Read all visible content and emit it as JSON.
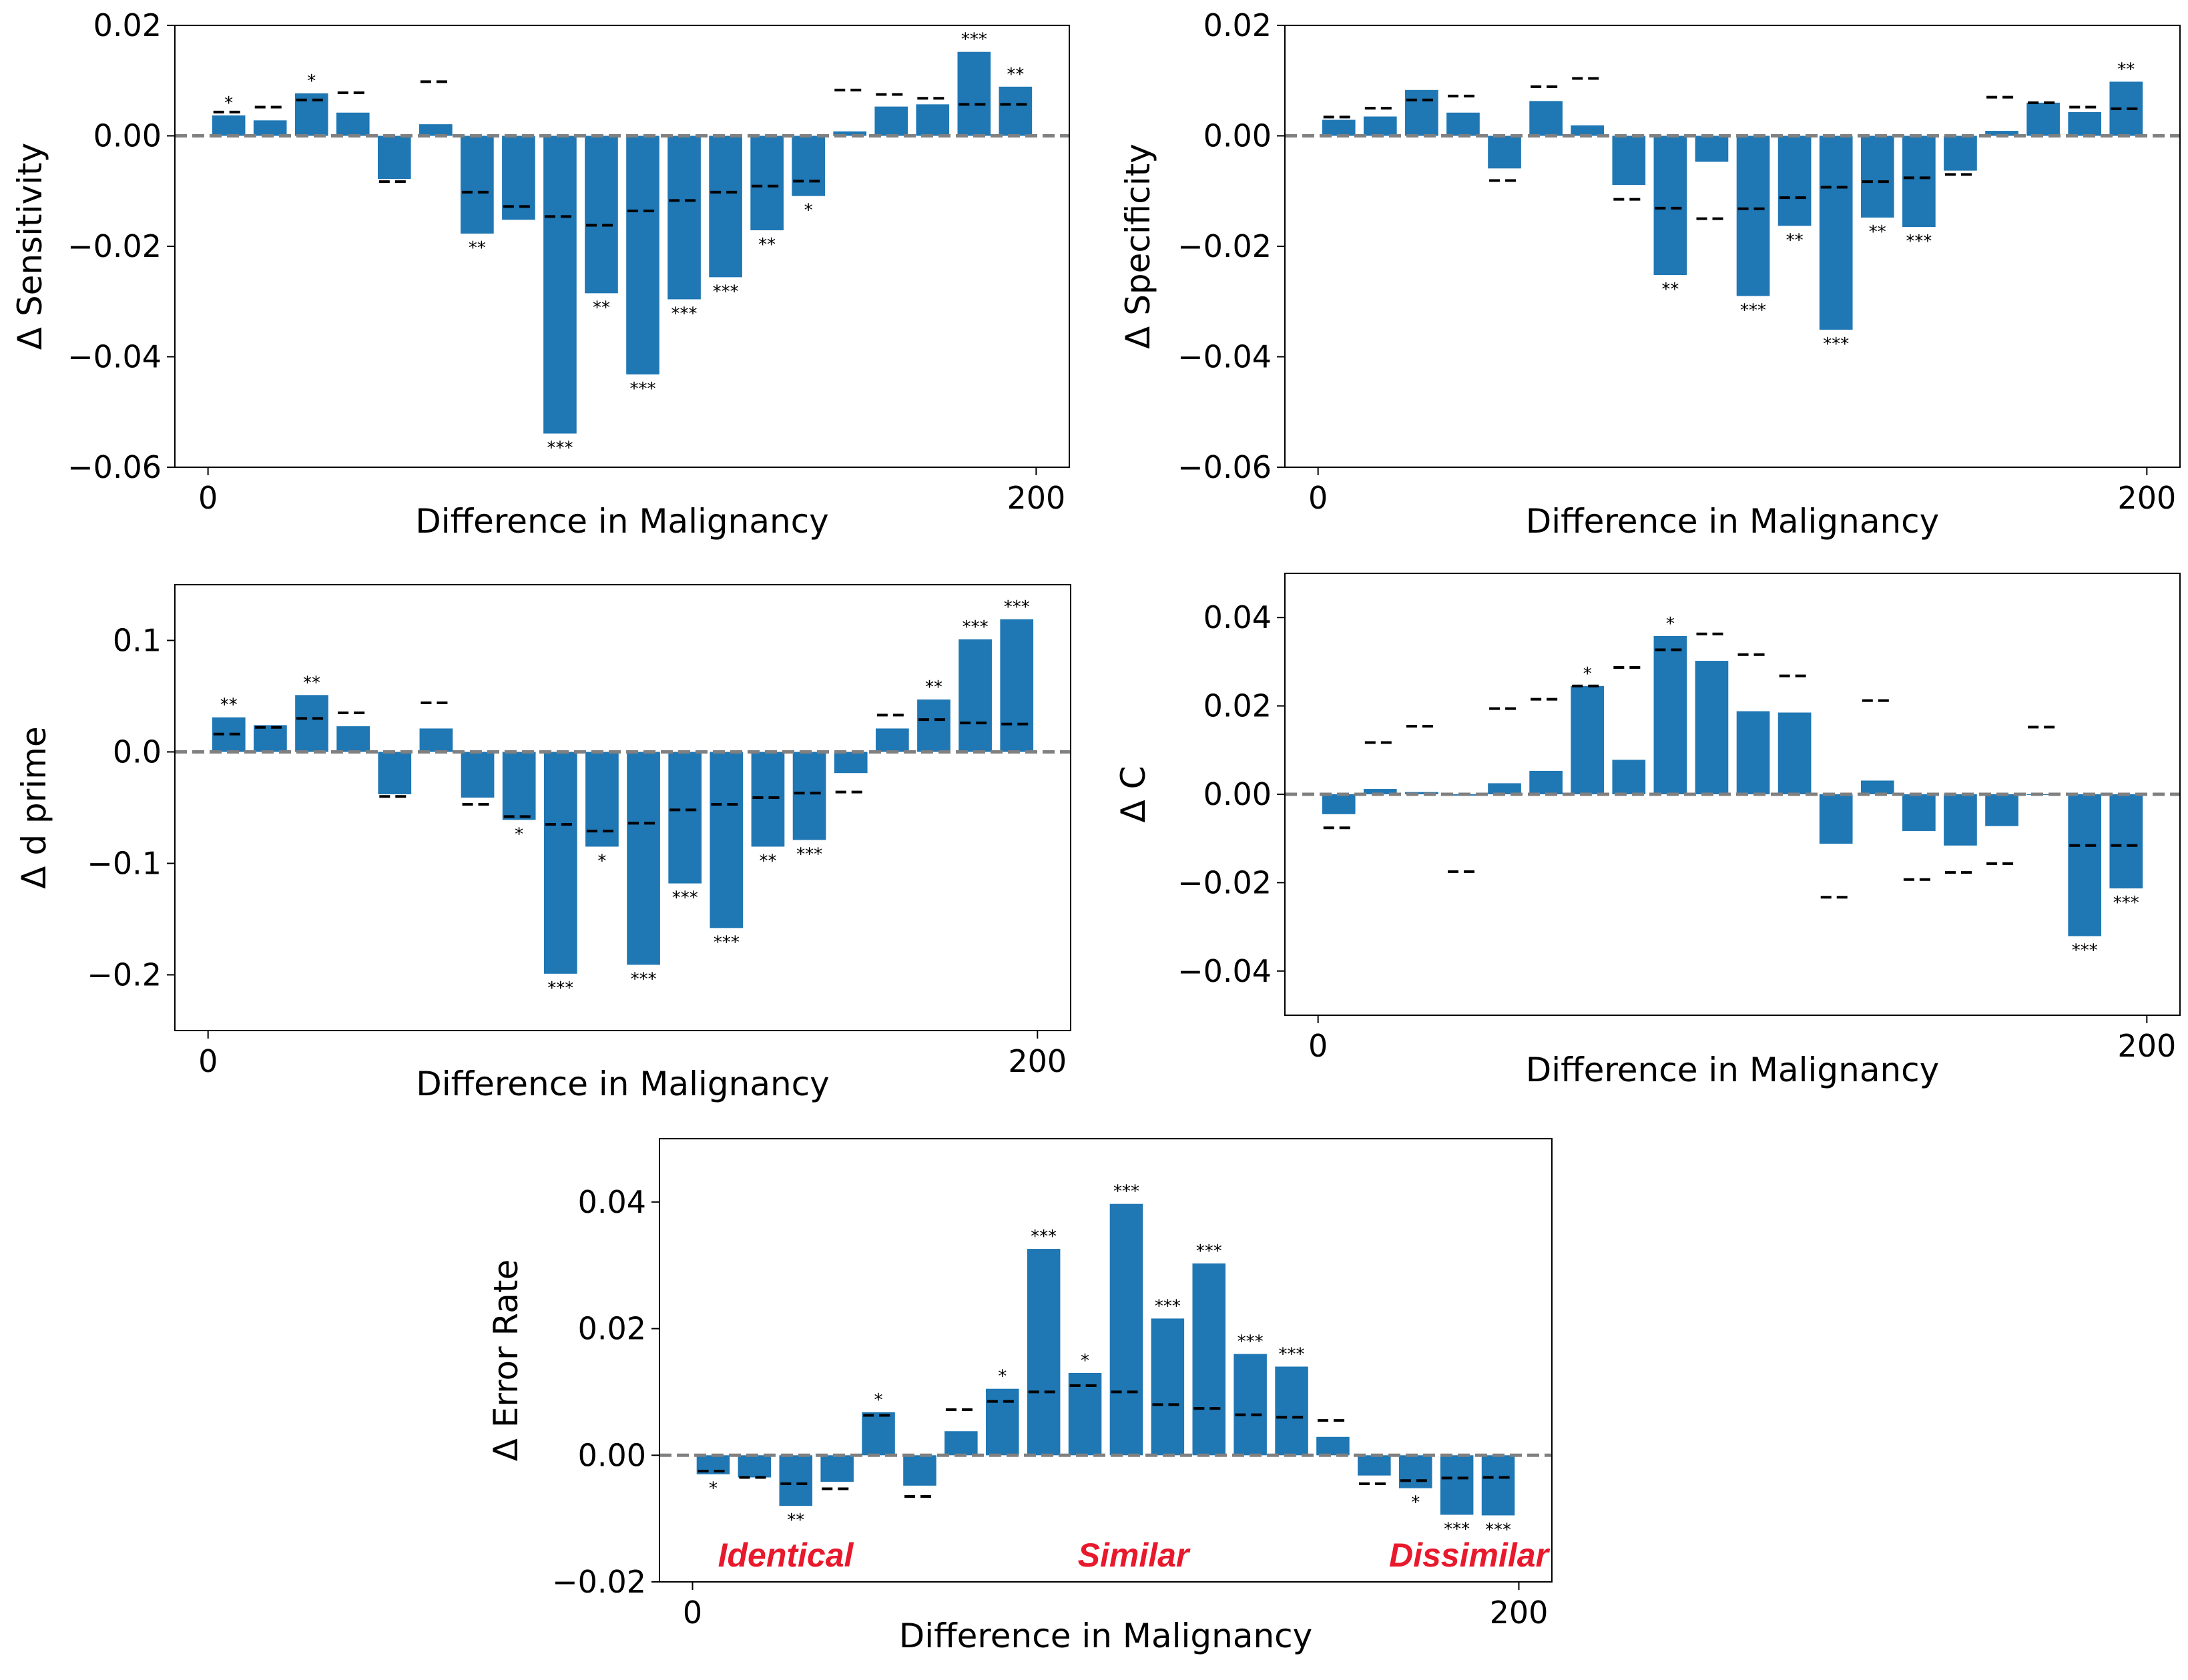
{
  "colors": {
    "bar": "#1f77b4",
    "zero_line": "#808080",
    "null_dash": "#000000",
    "region_label": "#e8192c"
  },
  "chart_data": [
    {
      "id": "sensitivity",
      "type": "bar",
      "title": "",
      "xlabel": "Difference in Malignancy",
      "ylabel": "Δ Sensitivity",
      "xlim": [
        -8,
        208
      ],
      "xticks": [
        "0",
        "200"
      ],
      "ylim": [
        -0.06,
        0.02
      ],
      "yticks": [
        "0.02",
        "0.00",
        "−0.02",
        "−0.04",
        "−0.06"
      ],
      "ytick_values": [
        0.02,
        0.0,
        -0.02,
        -0.04,
        -0.06
      ],
      "x": [
        5,
        15,
        25,
        35,
        45,
        55,
        65,
        75,
        85,
        95,
        105,
        115,
        125,
        135,
        145,
        155,
        165,
        175,
        185,
        195
      ],
      "values": [
        0.0037,
        0.0028,
        0.0077,
        0.0042,
        -0.0078,
        0.0021,
        -0.0177,
        -0.0152,
        -0.0539,
        -0.0285,
        -0.0432,
        -0.0296,
        -0.0256,
        -0.0171,
        -0.0109,
        0.0008,
        0.0053,
        0.0057,
        0.0152,
        0.0089
      ],
      "null_threshold": [
        0.0043,
        0.0052,
        0.0065,
        0.0078,
        -0.0083,
        0.0098,
        -0.0102,
        -0.0128,
        -0.0146,
        -0.0162,
        -0.0136,
        -0.0117,
        -0.0102,
        -0.0091,
        -0.0082,
        0.0083,
        0.0075,
        0.0068,
        0.0057,
        0.0057
      ],
      "significance": [
        "*",
        "",
        "*",
        "",
        "",
        "",
        "**",
        "",
        "***",
        "**",
        "***",
        "***",
        "***",
        "**",
        "*",
        "",
        "",
        "",
        "***",
        "**"
      ]
    },
    {
      "id": "specificity",
      "type": "bar",
      "title": "",
      "xlabel": "Difference in Malignancy",
      "ylabel": "Δ Specificity",
      "xlim": [
        -8,
        208
      ],
      "xticks": [
        "0",
        "200"
      ],
      "ylim": [
        -0.06,
        0.02
      ],
      "yticks": [
        "0.02",
        "0.00",
        "−0.02",
        "−0.04",
        "−0.06"
      ],
      "ytick_values": [
        0.02,
        0.0,
        -0.02,
        -0.04,
        -0.06
      ],
      "x": [
        5,
        15,
        25,
        35,
        45,
        55,
        65,
        75,
        85,
        95,
        105,
        115,
        125,
        135,
        145,
        155,
        165,
        175,
        185,
        195
      ],
      "values": [
        0.0029,
        0.0035,
        0.0083,
        0.0042,
        -0.0059,
        0.0063,
        0.0019,
        -0.0089,
        -0.0252,
        -0.0047,
        -0.029,
        -0.0163,
        -0.0351,
        -0.0148,
        -0.0165,
        -0.0063,
        0.0009,
        0.006,
        0.0043,
        0.0098
      ],
      "null_threshold": [
        0.0034,
        0.005,
        0.0065,
        0.0072,
        -0.0081,
        0.0089,
        0.0104,
        -0.0115,
        -0.0131,
        -0.015,
        -0.0132,
        -0.0112,
        -0.0093,
        -0.0083,
        -0.0076,
        -0.007,
        0.007,
        0.006,
        0.0052,
        0.0049
      ],
      "significance": [
        "",
        "",
        "",
        "",
        "",
        "",
        "",
        "",
        "**",
        "",
        "***",
        "**",
        "***",
        "**",
        "***",
        "",
        "",
        "",
        "",
        "**"
      ]
    },
    {
      "id": "dprime",
      "type": "bar",
      "title": "",
      "xlabel": "Difference in Malignancy",
      "ylabel": "Δ d prime",
      "xlim": [
        -8,
        208
      ],
      "xticks": [
        "0",
        "200"
      ],
      "ylim": [
        -0.25,
        0.15
      ],
      "yticks": [
        "0.1",
        "0.0",
        "−0.1",
        "−0.2"
      ],
      "ytick_values": [
        0.1,
        0.0,
        -0.1,
        -0.2
      ],
      "x": [
        5,
        15,
        25,
        35,
        45,
        55,
        65,
        75,
        85,
        95,
        105,
        115,
        125,
        135,
        145,
        155,
        165,
        175,
        185,
        195
      ],
      "values": [
        0.031,
        0.024,
        0.051,
        0.023,
        -0.038,
        0.021,
        -0.041,
        -0.061,
        -0.199,
        -0.085,
        -0.191,
        -0.118,
        -0.158,
        -0.085,
        -0.079,
        -0.019,
        0.021,
        0.047,
        0.101,
        0.119
      ],
      "null_threshold": [
        0.016,
        0.022,
        0.03,
        0.035,
        -0.04,
        0.044,
        -0.047,
        -0.058,
        -0.065,
        -0.071,
        -0.064,
        -0.052,
        -0.047,
        -0.041,
        -0.037,
        -0.036,
        0.033,
        0.029,
        0.026,
        0.025
      ],
      "significance": [
        "**",
        "",
        "**",
        "",
        "",
        "",
        "",
        "*",
        "***",
        "*",
        "***",
        "***",
        "***",
        "**",
        "***",
        "",
        "",
        "**",
        "***",
        "***"
      ]
    },
    {
      "id": "criterion",
      "type": "bar",
      "title": "",
      "xlabel": "Difference in Malignancy",
      "ylabel": "Δ C",
      "xlim": [
        -8,
        208
      ],
      "xticks": [
        "0",
        "200"
      ],
      "ylim": [
        -0.05,
        0.05
      ],
      "yticks": [
        "0.04",
        "0.02",
        "0.00",
        "−0.02",
        "−0.04"
      ],
      "ytick_values": [
        0.04,
        0.02,
        0.0,
        -0.02,
        -0.04
      ],
      "x": [
        5,
        15,
        25,
        35,
        45,
        55,
        65,
        75,
        85,
        95,
        105,
        115,
        125,
        135,
        145,
        155,
        165,
        175,
        185,
        195
      ],
      "values": [
        -0.0045,
        0.0012,
        0.0005,
        -0.0003,
        0.0025,
        0.0053,
        0.0245,
        0.0078,
        0.0358,
        0.0302,
        0.0188,
        0.0185,
        -0.0112,
        0.0031,
        -0.0083,
        -0.0116,
        -0.0072,
        0.0,
        -0.0321,
        -0.0213
      ],
      "null_threshold": [
        -0.0076,
        0.0117,
        0.0154,
        -0.0175,
        0.0194,
        0.0215,
        0.0245,
        0.0287,
        0.0327,
        0.0363,
        0.0316,
        0.0268,
        -0.0233,
        0.0212,
        -0.0193,
        -0.0177,
        -0.0157,
        0.0152,
        -0.0116,
        -0.0116
      ],
      "significance": [
        "",
        "",
        "",
        "",
        "",
        "",
        "*",
        "",
        "*",
        "",
        "",
        "",
        "",
        "",
        "",
        "",
        "",
        "",
        "***",
        "***"
      ]
    },
    {
      "id": "error_rate",
      "type": "bar",
      "title": "",
      "xlabel": "Difference in Malignancy",
      "ylabel": "Δ Error Rate",
      "xlim": [
        -8,
        208
      ],
      "xticks": [
        "0",
        "200"
      ],
      "ylim": [
        -0.02,
        0.05
      ],
      "yticks": [
        "0.04",
        "0.02",
        "0.00",
        "−0.02"
      ],
      "ytick_values": [
        0.04,
        0.02,
        0.0,
        -0.02
      ],
      "x": [
        5,
        15,
        25,
        35,
        45,
        55,
        65,
        75,
        85,
        95,
        105,
        115,
        125,
        135,
        145,
        155,
        165,
        175,
        185,
        195
      ],
      "values": [
        -0.003,
        -0.0035,
        -0.008,
        -0.0042,
        0.0068,
        -0.0048,
        0.0038,
        0.0105,
        0.0326,
        0.013,
        0.0397,
        0.0216,
        0.0303,
        0.016,
        0.014,
        0.0029,
        -0.0032,
        -0.0052,
        -0.0094,
        -0.0095
      ],
      "null_threshold": [
        -0.0025,
        -0.0035,
        -0.0045,
        -0.0053,
        0.0063,
        -0.0065,
        0.0072,
        0.0085,
        0.01,
        0.011,
        0.01,
        0.008,
        0.0074,
        0.0064,
        0.006,
        0.0055,
        -0.0045,
        -0.004,
        -0.0036,
        -0.0035
      ],
      "significance": [
        "*",
        "",
        "**",
        "",
        "*",
        "",
        "",
        "*",
        "***",
        "*",
        "***",
        "***",
        "***",
        "***",
        "***",
        "",
        "",
        "*",
        "***",
        "***"
      ],
      "annotations": [
        "Identical",
        "Similar",
        "Dissimilar"
      ]
    }
  ]
}
